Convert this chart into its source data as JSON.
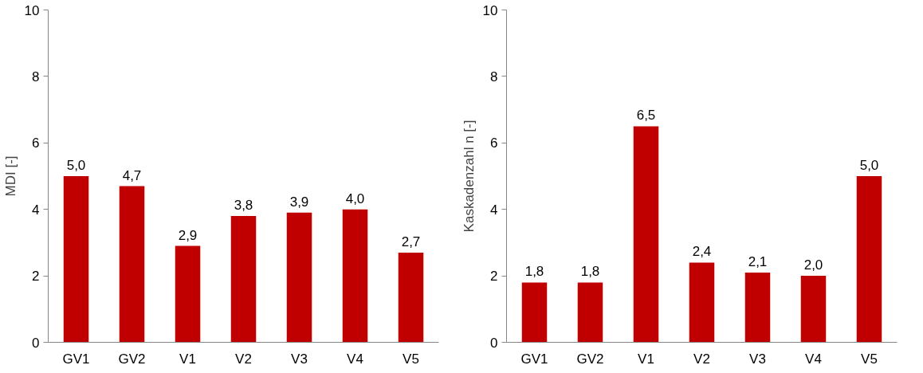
{
  "chart_data": [
    {
      "type": "bar",
      "ylabel": "MDI [-]",
      "categories": [
        "GV1",
        "GV2",
        "V1",
        "V2",
        "V3",
        "V4",
        "V5"
      ],
      "series": [
        {
          "color": "#c00000",
          "values": [
            5.0,
            4.7,
            2.9,
            3.8,
            3.9,
            4.0,
            2.7
          ],
          "value_labels": [
            "5,0",
            "4,7",
            "2,9",
            "3,8",
            "3,9",
            "4,0",
            "2,7"
          ]
        }
      ],
      "ylim": [
        0,
        10
      ],
      "yticks": [
        0,
        2,
        4,
        6,
        8,
        10
      ]
    },
    {
      "type": "bar",
      "ylabel": "Kaskadenzahl n [-]",
      "categories": [
        "GV1",
        "GV2",
        "V1",
        "V2",
        "V3",
        "V4",
        "V5"
      ],
      "series": [
        {
          "color": "#c00000",
          "values": [
            1.8,
            1.8,
            6.5,
            2.4,
            2.1,
            2.0,
            5.0
          ],
          "value_labels": [
            "1,8",
            "1,8",
            "6,5",
            "2,4",
            "2,1",
            "2,0",
            "5,0"
          ]
        }
      ],
      "ylim": [
        0,
        10
      ],
      "yticks": [
        0,
        2,
        4,
        6,
        8,
        10
      ]
    }
  ]
}
